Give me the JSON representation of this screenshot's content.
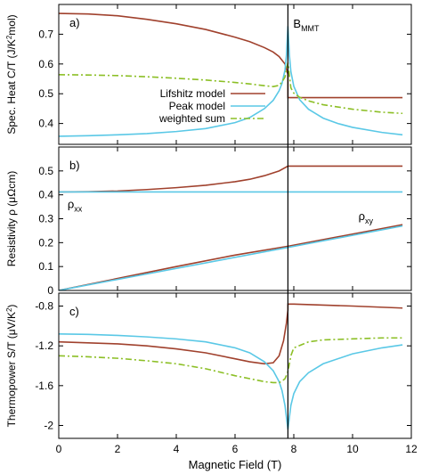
{
  "figure": {
    "xlabel": "Magnetic Field (T)",
    "xlim": [
      0,
      12
    ],
    "xticks": [
      0,
      2,
      4,
      6,
      8,
      10,
      12
    ],
    "vline_x": 7.8,
    "vline_label_main": "B",
    "vline_label_sub": "MMT"
  },
  "colors": {
    "lifshitz": "#a0412d",
    "peak": "#5ac8e6",
    "weighted": "#8cbf26"
  },
  "chart_data": [
    {
      "type": "line",
      "panel_label": "a)",
      "ylabel_main": "Spec. Heat C/T (J/K",
      "ylabel_sup": "2",
      "ylabel_tail": "mol)",
      "ylim": [
        0.33,
        0.8
      ],
      "yticks": [
        "0.4",
        "0.5",
        "0.6",
        "0.7"
      ],
      "ytick_values": [
        0.4,
        0.5,
        0.6,
        0.7
      ],
      "legend": {
        "placement": "center-right",
        "entries": [
          "Lifshitz model",
          "Peak model",
          "weighted sum"
        ]
      },
      "series": [
        {
          "name": "Lifshitz model",
          "style": "solid",
          "color_key": "lifshitz",
          "x": [
            0,
            1,
            2,
            3,
            4,
            5,
            6,
            6.5,
            7,
            7.3,
            7.5,
            7.7,
            7.8,
            7.8,
            8,
            10,
            11.7
          ],
          "y": [
            0.77,
            0.768,
            0.762,
            0.75,
            0.735,
            0.716,
            0.69,
            0.675,
            0.655,
            0.64,
            0.625,
            0.6,
            0.565,
            0.487,
            0.487,
            0.487,
            0.487
          ]
        },
        {
          "name": "Peak model",
          "style": "solid",
          "color_key": "peak",
          "x": [
            0,
            1,
            2,
            3,
            4,
            5,
            6,
            6.5,
            7,
            7.3,
            7.5,
            7.6,
            7.7,
            7.75,
            7.8,
            7.85,
            7.9,
            8,
            8.2,
            8.5,
            9,
            9.5,
            10,
            11,
            11.7
          ],
          "y": [
            0.357,
            0.359,
            0.362,
            0.366,
            0.373,
            0.383,
            0.403,
            0.42,
            0.45,
            0.478,
            0.51,
            0.535,
            0.58,
            0.63,
            0.727,
            0.63,
            0.575,
            0.525,
            0.48,
            0.448,
            0.418,
            0.4,
            0.387,
            0.37,
            0.362
          ]
        },
        {
          "name": "weighted sum",
          "style": "dashdot",
          "color_key": "weighted",
          "x": [
            0,
            1,
            2,
            3,
            4,
            5,
            6,
            6.5,
            7,
            7.3,
            7.5,
            7.6,
            7.7,
            7.8,
            7.9,
            8,
            8.2,
            8.5,
            9,
            10,
            11,
            11.7
          ],
          "y": [
            0.564,
            0.563,
            0.561,
            0.557,
            0.552,
            0.546,
            0.538,
            0.533,
            0.527,
            0.524,
            0.528,
            0.54,
            0.556,
            0.604,
            0.52,
            0.502,
            0.488,
            0.476,
            0.463,
            0.448,
            0.438,
            0.434
          ]
        }
      ]
    },
    {
      "type": "line",
      "panel_label": "b)",
      "ylabel_main": "Resistivity ρ (μΩcm)",
      "ylim": [
        0,
        0.6
      ],
      "yticks": [
        "0",
        "0.1",
        "0.2",
        "0.3",
        "0.4",
        "0.5"
      ],
      "ytick_values": [
        0,
        0.1,
        0.2,
        0.3,
        0.4,
        0.5
      ],
      "annotations": [
        {
          "text_main": "ρ",
          "text_sub": "xx",
          "x": 0.3,
          "y": 0.345
        },
        {
          "text_main": "ρ",
          "text_sub": "xy",
          "x": 10.2,
          "y": 0.295
        }
      ],
      "series": [
        {
          "style": "solid",
          "color_key": "lifshitz",
          "x": [
            0,
            1,
            2,
            3,
            4,
            5,
            6,
            6.5,
            7,
            7.5,
            7.8,
            8,
            11.7
          ],
          "y": [
            0.412,
            0.413,
            0.416,
            0.422,
            0.43,
            0.44,
            0.455,
            0.465,
            0.48,
            0.5,
            0.52,
            0.52,
            0.52
          ]
        },
        {
          "style": "solid",
          "color_key": "peak",
          "x": [
            0,
            11.7
          ],
          "y": [
            0.412,
            0.412
          ]
        },
        {
          "style": "solid",
          "color_key": "lifshitz",
          "x": [
            0,
            2,
            4,
            6,
            7.8,
            11.7
          ],
          "y": [
            0,
            0.05,
            0.1,
            0.148,
            0.185,
            0.275
          ]
        },
        {
          "style": "solid",
          "color_key": "peak",
          "x": [
            0,
            7.8,
            11.7
          ],
          "y": [
            0,
            0.18,
            0.27
          ]
        }
      ]
    },
    {
      "type": "line",
      "panel_label": "c)",
      "ylabel_main": "Thermopower S/T (μV/K",
      "ylabel_sup": "2",
      "ylabel_tail": ")",
      "ylim": [
        -2.13,
        -0.67
      ],
      "yticks": [
        "-0.8",
        "-1.2",
        "-1.6",
        "-2"
      ],
      "ytick_values": [
        -0.8,
        -1.2,
        -1.6,
        -2
      ],
      "series": [
        {
          "style": "solid",
          "color_key": "lifshitz",
          "x": [
            0,
            1,
            2,
            3,
            4,
            5,
            6,
            6.5,
            7,
            7.3,
            7.5,
            7.65,
            7.75,
            7.8,
            7.8,
            8,
            10,
            11.7
          ],
          "y": [
            -1.16,
            -1.17,
            -1.18,
            -1.2,
            -1.23,
            -1.27,
            -1.33,
            -1.36,
            -1.38,
            -1.37,
            -1.3,
            -1.15,
            -0.97,
            -0.84,
            -0.78,
            -0.78,
            -0.8,
            -0.82
          ],
          "name": "Lifshitz model"
        },
        {
          "style": "solid",
          "color_key": "peak",
          "x": [
            0,
            1,
            2,
            3,
            4,
            5,
            6,
            6.5,
            7,
            7.3,
            7.5,
            7.6,
            7.7,
            7.75,
            7.8,
            7.85,
            7.9,
            8,
            8.2,
            8.5,
            9,
            10,
            11,
            11.7
          ],
          "y": [
            -1.08,
            -1.085,
            -1.095,
            -1.11,
            -1.13,
            -1.16,
            -1.22,
            -1.27,
            -1.36,
            -1.45,
            -1.56,
            -1.65,
            -1.8,
            -1.92,
            -2.04,
            -1.92,
            -1.8,
            -1.68,
            -1.56,
            -1.47,
            -1.38,
            -1.28,
            -1.22,
            -1.19
          ],
          "name": "Peak model"
        },
        {
          "style": "dashdot",
          "color_key": "weighted",
          "x": [
            0,
            1,
            2,
            3,
            4,
            5,
            6,
            6.5,
            7,
            7.3,
            7.5,
            7.6,
            7.7,
            7.8,
            7.9,
            8,
            8.5,
            9,
            10,
            11,
            11.7
          ],
          "y": [
            -1.3,
            -1.31,
            -1.325,
            -1.35,
            -1.38,
            -1.43,
            -1.5,
            -1.53,
            -1.56,
            -1.57,
            -1.57,
            -1.555,
            -1.53,
            -1.46,
            -1.3,
            -1.22,
            -1.16,
            -1.14,
            -1.13,
            -1.12,
            -1.12
          ],
          "name": "weighted sum"
        }
      ]
    }
  ]
}
